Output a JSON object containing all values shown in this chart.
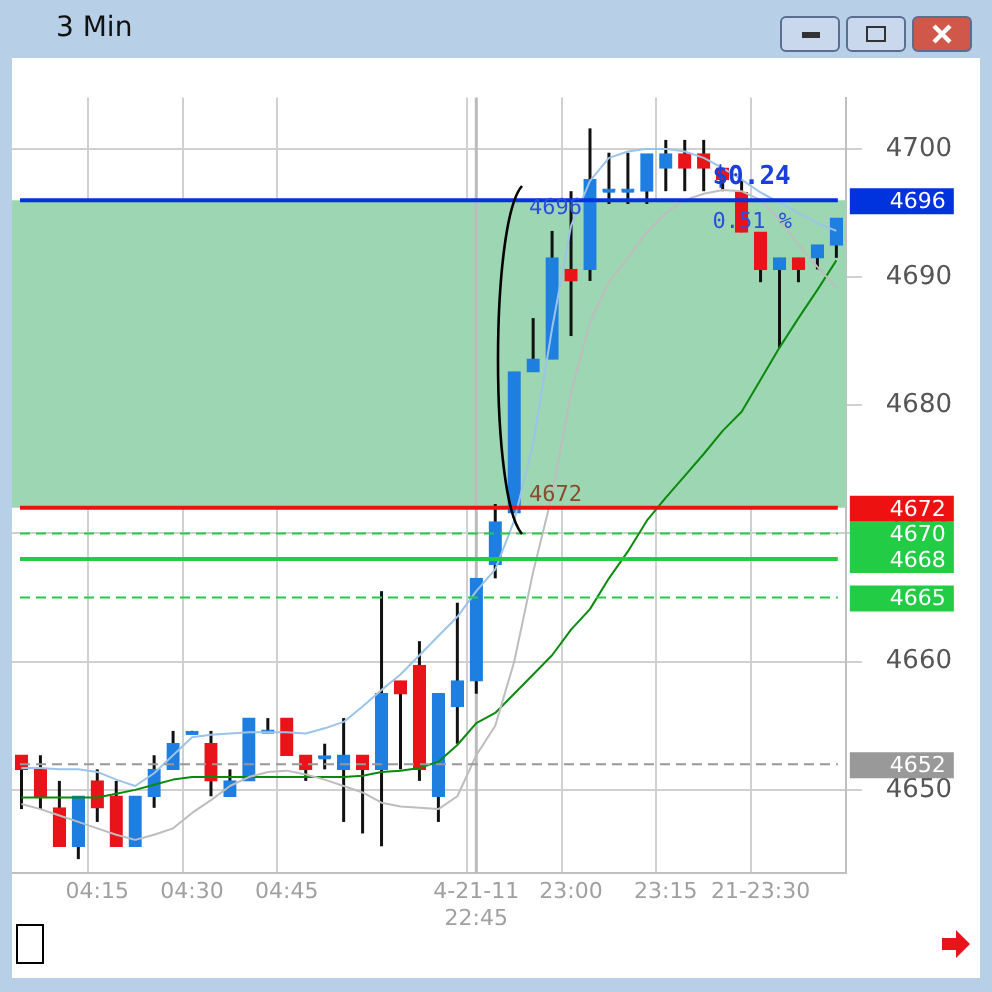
{
  "chart_data": {
    "type": "candlestick",
    "title": "3 Min",
    "categories": [
      null,
      null,
      null,
      null,
      "04:15",
      null,
      null,
      null,
      null,
      "04:30",
      null,
      null,
      null,
      null,
      "04:45",
      null,
      null,
      null,
      null,
      null,
      null,
      null,
      null,
      null,
      "4-21-11 22:45",
      null,
      null,
      null,
      null,
      "23:00",
      null,
      null,
      null,
      null,
      "23:15",
      null,
      null,
      null,
      null,
      "21-23:30",
      null,
      null,
      null,
      null
    ],
    "series": [
      {
        "type": "candlestick",
        "colors": [
          "#e8141a",
          "#e8141a",
          "#e8141a",
          "#1e7fe0",
          "#e8141a",
          "#e8141a",
          "#1e7fe0",
          "#1e7fe0",
          "#1e7fe0",
          "#1e7fe0",
          "#e8141a",
          "#1e7fe0",
          "#1e7fe0",
          "#1e7fe0",
          "#e8141a",
          "#e8141a",
          "#1e7fe0",
          "#1e7fe0",
          "#e8141a",
          "#1e7fe0",
          "#e8141a",
          "#e8141a",
          "#1e7fe0",
          "#1e7fe0",
          "#1e7fe0",
          "#1e7fe0",
          "#1e7fe0",
          "#1e7fe0",
          "#1e7fe0",
          "#e8141a",
          "#1e7fe0",
          "#1e7fe0",
          "#1e7fe0",
          "#1e7fe0",
          "#1e7fe0",
          "#e8141a",
          "#e8141a",
          "#e8141a",
          "#e8141a",
          "#e8141a",
          "#1e7fe0",
          "#e8141a",
          "#1e7fe0",
          "#1e7fe0"
        ],
        "ohlc": [
          [
            4652.7,
            4652.7,
            4648.5,
            4651.6
          ],
          [
            4651.6,
            4652.7,
            4648.5,
            4649.5
          ],
          [
            4648.6,
            4650.7,
            4645.6,
            4645.6
          ],
          [
            4645.6,
            4649.5,
            4644.6,
            4649.5
          ],
          [
            4650.7,
            4651.6,
            4647.5,
            4648.6
          ],
          [
            4649.5,
            4650.7,
            4645.6,
            4645.6
          ],
          [
            4645.6,
            4649.5,
            4645.6,
            4649.5
          ],
          [
            4649.5,
            4652.7,
            4648.6,
            4651.6
          ],
          [
            4651.6,
            4654.6,
            4651.6,
            4653.6
          ],
          [
            4654.4,
            4654.6,
            4654.4,
            4654.4
          ],
          [
            4653.6,
            4654.6,
            4649.5,
            4650.7
          ],
          [
            4649.5,
            4651.6,
            4649.5,
            4650.7
          ],
          [
            4650.7,
            4655.6,
            4650.7,
            4655.6
          ],
          [
            4654.5,
            4655.6,
            4654.5,
            4654.5
          ],
          [
            4655.6,
            4655.6,
            4652.7,
            4652.7
          ],
          [
            4652.7,
            4652.7,
            4650.7,
            4651.6
          ],
          [
            4652.5,
            4653.6,
            4651.6,
            4652.5
          ],
          [
            4651.6,
            4655.6,
            4647.5,
            4652.7
          ],
          [
            4652.7,
            4652.7,
            4646.6,
            4651.6
          ],
          [
            4651.6,
            4665.5,
            4645.6,
            4657.5
          ],
          [
            4658.5,
            4658.5,
            4651.6,
            4657.5
          ],
          [
            4659.7,
            4661.6,
            4650.7,
            4651.6
          ],
          [
            4649.5,
            4657.5,
            4647.5,
            4657.5
          ],
          [
            4656.5,
            4664.6,
            4653.6,
            4658.5
          ],
          [
            4658.5,
            4666.5,
            4657.5,
            4666.5
          ],
          [
            4667.6,
            4672.3,
            4666.5,
            4670.9
          ],
          [
            4671.6,
            4682.6,
            4671.6,
            4682.6
          ],
          [
            4682.6,
            4686.8,
            4682.6,
            4683.6
          ],
          [
            4683.6,
            4693.6,
            4683.6,
            4691.5
          ],
          [
            4690.6,
            4696.7,
            4685.4,
            4689.7
          ],
          [
            4690.6,
            4701.6,
            4689.7,
            4697.6
          ],
          [
            4696.7,
            4699.7,
            4695.7,
            4696.7
          ],
          [
            4696.7,
            4699.7,
            4695.7,
            4696.7
          ],
          [
            4696.7,
            4699.6,
            4695.7,
            4699.6
          ],
          [
            4698.5,
            4700.7,
            4696.7,
            4699.6
          ],
          [
            4699.6,
            4700.7,
            4696.7,
            4698.5
          ],
          [
            4699.6,
            4700.7,
            4696.7,
            4698.5
          ],
          [
            4698.5,
            4698.5,
            4696.7,
            4697.6
          ],
          [
            4696.6,
            4697.6,
            4693.5,
            4693.5
          ],
          [
            4693.5,
            4693.5,
            4689.6,
            4690.6
          ],
          [
            4690.6,
            4691.5,
            4684.5,
            4691.5
          ],
          [
            4691.5,
            4691.5,
            4689.6,
            4690.6
          ],
          [
            4691.5,
            4692.5,
            4690.6,
            4692.5
          ],
          [
            4692.5,
            4694.6,
            4691.5,
            4694.6
          ]
        ]
      },
      {
        "type": "line",
        "color": "#9cc3e8",
        "values": [
          4651.7,
          4651.7,
          4651.6,
          4651.6,
          4651.4,
          4650.8,
          4650.3,
          4651.3,
          4652.7,
          4654.1,
          4654.3,
          4654.4,
          4654.5,
          4654.5,
          4654.5,
          4654.4,
          4654.8,
          4655.3,
          4656.5,
          4657.8,
          4659,
          4660.5,
          4662,
          4663.5,
          4665.5,
          4667.2,
          4671,
          4677,
          4686,
          4694,
          4697.5,
          4699.3,
          4699.8,
          4700,
          4700,
          4699.8,
          4699.3,
          4698.5,
          4697.6,
          4696.6,
          4695.8,
          4695,
          4694.2,
          4693.6
        ]
      },
      {
        "type": "line",
        "color": "#bdbdbd",
        "values": [
          4648.9,
          4648.5,
          4648,
          4647.5,
          4647,
          4646.5,
          4646.1,
          4646.5,
          4647,
          4648.2,
          4649.2,
          4650.3,
          4651,
          4651.4,
          4651.5,
          4651.2,
          4650.8,
          4650.3,
          4649.8,
          4649,
          4648.7,
          4648.6,
          4648.5,
          4649.5,
          4652.7,
          4655,
          4660,
          4667,
          4673,
          4681,
          4686.5,
          4689.6,
          4691.5,
          4693.5,
          4695,
          4696,
          4696.5,
          4696.8,
          4696.7,
          4696,
          4694.5,
          4692.5,
          4690.8,
          4689.2
        ]
      },
      {
        "type": "line",
        "color": "#0a8a0a",
        "values": [
          4649.4,
          4649.4,
          4649.4,
          4649.4,
          4649.4,
          4649.7,
          4650,
          4650.4,
          4650.8,
          4651,
          4651,
          4651,
          4651,
          4651,
          4651,
          4651,
          4651,
          4651,
          4651.1,
          4651.4,
          4651.5,
          4651.7,
          4652.2,
          4653.5,
          4655.2,
          4656,
          4657.5,
          4659,
          4660.5,
          4662.5,
          4664.1,
          4666.5,
          4668.6,
          4671,
          4672.8,
          4674.5,
          4676.2,
          4678,
          4679.5,
          4682,
          4684.5,
          4686.8,
          4689,
          4691.3
        ]
      }
    ],
    "ylim": [
      4643.5,
      4704
    ],
    "yticks": [
      4650,
      4660,
      4670,
      4680,
      4690,
      4700
    ],
    "grid": true,
    "legend": false,
    "marker": "none",
    "bands": [
      {
        "axis": "y",
        "from": 4672,
        "to": 4696,
        "color": "#9dd6b2"
      }
    ],
    "ref_lines": [
      {
        "axis": "y",
        "value": 4696,
        "label": "4696",
        "color": "#0033dd"
      },
      {
        "axis": "y",
        "value": 4672,
        "label": "4672",
        "color": "#ee1111"
      },
      {
        "axis": "y",
        "value": 4670,
        "label": "4670",
        "color": "#22cc44",
        "line_style": "dashed"
      },
      {
        "axis": "y",
        "value": 4668,
        "label": "4668",
        "color": "#22cc44"
      },
      {
        "axis": "y",
        "value": 4665,
        "label": "4665",
        "color": "#22cc44",
        "line_style": "dashed"
      },
      {
        "axis": "y",
        "value": 4652,
        "label": "4652",
        "color": "#999999",
        "line_style": "dashed"
      },
      {
        "axis": "x",
        "value": "4-21-11 22:45",
        "color": "#bbbbbb"
      }
    ],
    "annotations": [
      {
        "text": "4696",
        "y": 4695.4
      },
      {
        "text": "$0.24",
        "y": 4697.8
      },
      {
        "text": "0.51 %",
        "y": 4694.3
      },
      {
        "text": "4672",
        "y": 4673
      }
    ]
  }
}
